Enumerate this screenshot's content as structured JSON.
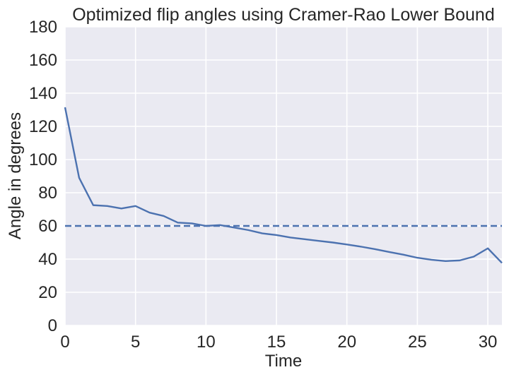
{
  "chart_data": {
    "type": "line",
    "title": "Optimized flip angles using Cramer-Rao Lower Bound",
    "xlabel": "Time",
    "ylabel": "Angle in degrees",
    "xlim": [
      0,
      31
    ],
    "ylim": [
      0,
      180
    ],
    "xticks": [
      0,
      5,
      10,
      15,
      20,
      25,
      30
    ],
    "yticks": [
      0,
      20,
      40,
      60,
      80,
      100,
      120,
      140,
      160,
      180
    ],
    "grid": true,
    "background": "#eaeaf2",
    "series": [
      {
        "color": "#4c72b0",
        "style": "solid",
        "x": [
          0,
          1,
          2,
          3,
          4,
          5,
          6,
          7,
          8,
          9,
          10,
          11,
          12,
          13,
          14,
          15,
          16,
          17,
          18,
          19,
          20,
          21,
          22,
          23,
          24,
          25,
          26,
          27,
          28,
          29,
          30,
          31
        ],
        "y": [
          131.5,
          89,
          72.5,
          72,
          70.5,
          72,
          68,
          66,
          62,
          61.5,
          60,
          60.5,
          59,
          57.5,
          55.5,
          54.5,
          53,
          52,
          51,
          50,
          48.8,
          47.5,
          46,
          44.3,
          42.7,
          40.8,
          39.6,
          38.8,
          39.2,
          41.5,
          46.5,
          37.7
        ]
      },
      {
        "color": "#4c72b0",
        "style": "dashed",
        "x": [
          0,
          31
        ],
        "y": [
          60,
          60
        ]
      }
    ]
  }
}
